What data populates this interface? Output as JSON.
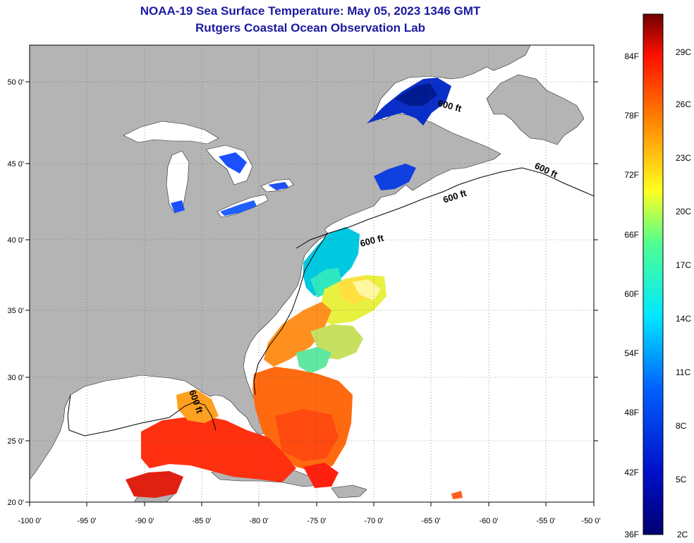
{
  "title_line1": "NOAA-19 Sea Surface Temperature:  May 05, 2023 1346 GMT",
  "title_line2": "Rutgers Coastal Ocean Observation Lab",
  "lon_ticks": [
    "-100 0'",
    "-95 0'",
    "-90 0'",
    "-85 0'",
    "-80 0'",
    "-75 0'",
    "-70 0'",
    "-65 0'",
    "-60 0'",
    "-55 0'",
    "-50 0'"
  ],
  "lat_ticks": [
    "50 0'",
    "45 0'",
    "40 0'",
    "35 0'",
    "30 0'",
    "25 0'",
    "20 0'"
  ],
  "colorbar": {
    "f_labels": [
      "84F",
      "78F",
      "72F",
      "66F",
      "60F",
      "54F",
      "48F",
      "42F",
      "36F"
    ],
    "c_labels": [
      "29C",
      "26C",
      "23C",
      "20C",
      "17C",
      "14C",
      "11C",
      "8C",
      "5C",
      "2C"
    ]
  },
  "contour_label": "600 ft",
  "colors": {
    "land": "#b4b4b4",
    "ocean": "#ffffff",
    "title": "#1a1aa0"
  }
}
